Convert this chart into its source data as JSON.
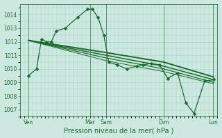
{
  "background_color": "#cce8e0",
  "grid_color": "#b8ddd6",
  "line_color": "#1a6b2a",
  "xlabel": "Pression niveau de la mer( hPa )",
  "xlabel_fontsize": 7,
  "ylim": [
    1006.5,
    1014.8
  ],
  "yticks": [
    1007,
    1008,
    1009,
    1010,
    1011,
    1012,
    1013,
    1014
  ],
  "xlim": [
    0,
    240
  ],
  "xtick_positions": [
    10,
    85,
    105,
    175,
    235
  ],
  "xtick_labels": [
    "Ven",
    "Mar",
    "Sam",
    "Dim",
    "Lun"
  ],
  "vline_positions": [
    10,
    85,
    105,
    175,
    235
  ],
  "series": [
    {
      "x": [
        10,
        20,
        26,
        32,
        38,
        44,
        55,
        70,
        82,
        88,
        95,
        102,
        108,
        118,
        130,
        142,
        150,
        160,
        170,
        180,
        192,
        202,
        212,
        225,
        236
      ],
      "y": [
        1009.5,
        1010.0,
        1012.2,
        1012.0,
        1012.0,
        1012.8,
        1013.0,
        1013.8,
        1014.4,
        1014.4,
        1013.8,
        1012.5,
        1010.5,
        1010.3,
        1010.0,
        1010.2,
        1010.3,
        1010.4,
        1010.3,
        1009.3,
        1009.7,
        1007.5,
        1006.7,
        1009.1,
        1009.2
      ],
      "marker": "D",
      "markersize": 2.5,
      "linewidth": 0.9
    },
    {
      "x": [
        10,
        105,
        175,
        236
      ],
      "y": [
        1012.1,
        1011.2,
        1010.5,
        1009.4
      ],
      "marker": null,
      "linewidth": 1.4
    },
    {
      "x": [
        10,
        105,
        175,
        236
      ],
      "y": [
        1012.1,
        1011.0,
        1010.2,
        1009.2
      ],
      "marker": null,
      "linewidth": 1.1
    },
    {
      "x": [
        10,
        105,
        175,
        236
      ],
      "y": [
        1012.1,
        1010.8,
        1010.0,
        1009.0
      ],
      "marker": null,
      "linewidth": 0.9
    },
    {
      "x": [
        10,
        105,
        175,
        236
      ],
      "y": [
        1012.1,
        1010.6,
        1009.8,
        1008.9
      ],
      "marker": null,
      "linewidth": 0.7
    }
  ],
  "vline_color": "#1a6b2a",
  "vline_linewidth": 0.6
}
